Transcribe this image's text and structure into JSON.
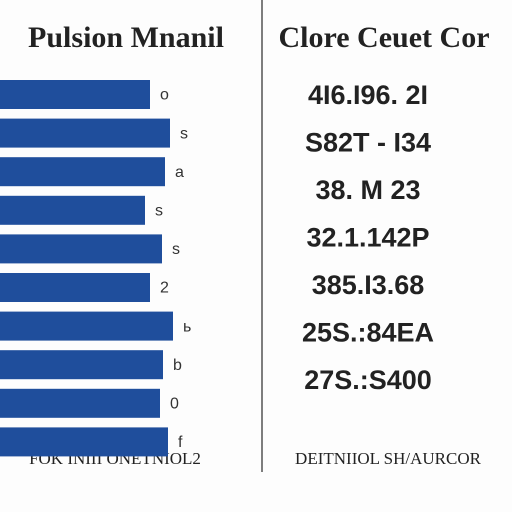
{
  "chart_data": {
    "type": "bar",
    "orientation": "horizontal",
    "title": "Pulsion Mnanil",
    "categories": [
      "o",
      "s",
      "a",
      "s",
      "s",
      "2",
      "ь",
      "b",
      "0",
      "f"
    ],
    "values": [
      150,
      170,
      165,
      145,
      162,
      150,
      173,
      163,
      160,
      168
    ],
    "xlim": [
      0,
      180
    ],
    "color": "#1f4e9c",
    "x_label": "FOK INIII ONETNIOL2"
  },
  "panel": {
    "title": "Clore Ceuet Cor",
    "rows": [
      "4I6.I96. 2I",
      "S82T - I34",
      "38. M 23",
      "32.1.142P",
      "385.I3.68",
      "25S.:84EA",
      "27S.:S400"
    ],
    "footer": "DEITNIIOL SH/AURCOR"
  }
}
